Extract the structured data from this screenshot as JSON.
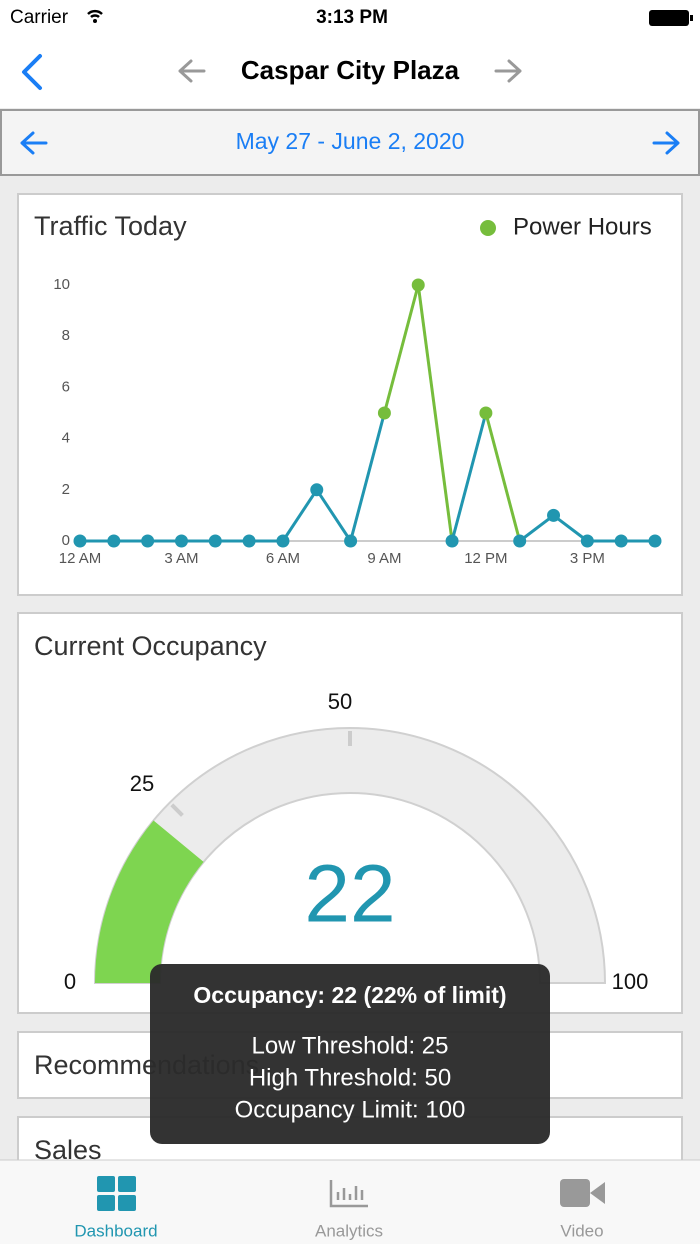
{
  "status_bar": {
    "carrier": "Carrier",
    "time": "3:13 PM"
  },
  "nav": {
    "title": "Caspar City Plaza"
  },
  "date_range": "May 27 - June 2, 2020",
  "chart_data": [
    {
      "type": "line",
      "title": "Traffic Today",
      "categories": [
        "12 AM",
        null,
        null,
        "3 AM",
        null,
        null,
        "6 AM",
        null,
        null,
        "9 AM",
        null,
        null,
        "12 PM",
        null,
        null,
        "3 PM",
        null,
        null
      ],
      "values": [
        0,
        0,
        0,
        0,
        0,
        0,
        0,
        2,
        0,
        5,
        10,
        0,
        5,
        0,
        1,
        0,
        0,
        0
      ],
      "color": "#2196b0",
      "highlight": {
        "name": "Power Hours",
        "color": "#76bd3c",
        "indices": [
          9,
          10,
          12
        ]
      },
      "ylim": [
        0,
        10
      ],
      "yticks": [
        0,
        2,
        4,
        6,
        8,
        10
      ]
    },
    {
      "type": "gauge",
      "title": "Current Occupancy",
      "value": 22,
      "color": "#7ed550",
      "lim": [
        0,
        100
      ],
      "ticks": [
        0,
        25,
        50,
        100
      ]
    }
  ],
  "tooltip": {
    "title": "Occupancy: 22 (22% of limit)",
    "lines": [
      "Low Threshold: 25",
      "High Threshold: 50",
      "Occupancy Limit: 100"
    ]
  },
  "cards": [
    "Recommendations",
    "Sales"
  ],
  "tabs": [
    "Dashboard",
    "Analytics",
    "Video"
  ]
}
